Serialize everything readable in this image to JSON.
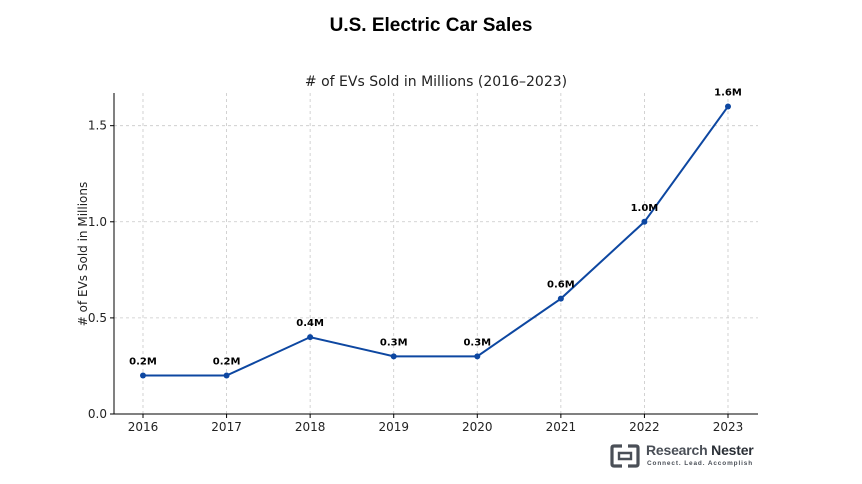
{
  "header": {
    "title": "U.S. Electric Car Sales"
  },
  "chart_data": {
    "type": "line",
    "title": "# of EVs Sold in Millions (2016–2023)",
    "xlabel": "",
    "ylabel": "# of EVs Sold in Millions",
    "x": [
      "2016",
      "2017",
      "2018",
      "2019",
      "2020",
      "2021",
      "2022",
      "2023"
    ],
    "series": [
      {
        "values": [
          0.2,
          0.2,
          0.4,
          0.3,
          0.3,
          0.6,
          1.0,
          1.6
        ],
        "labels": [
          "0.2M",
          "0.2M",
          "0.4M",
          "0.3M",
          "0.3M",
          "0.6M",
          "1.0M",
          "1.6M"
        ],
        "color": "#0d47a1"
      }
    ],
    "yticks": [
      "0.0",
      "0.5",
      "1.0",
      "1.5"
    ],
    "ylim": [
      0,
      1.67
    ],
    "grid": true,
    "legend": "none"
  },
  "logo": {
    "name_a": "Research",
    "name_b": "Nester",
    "tagline": "Connect. Lead. Accomplish"
  }
}
